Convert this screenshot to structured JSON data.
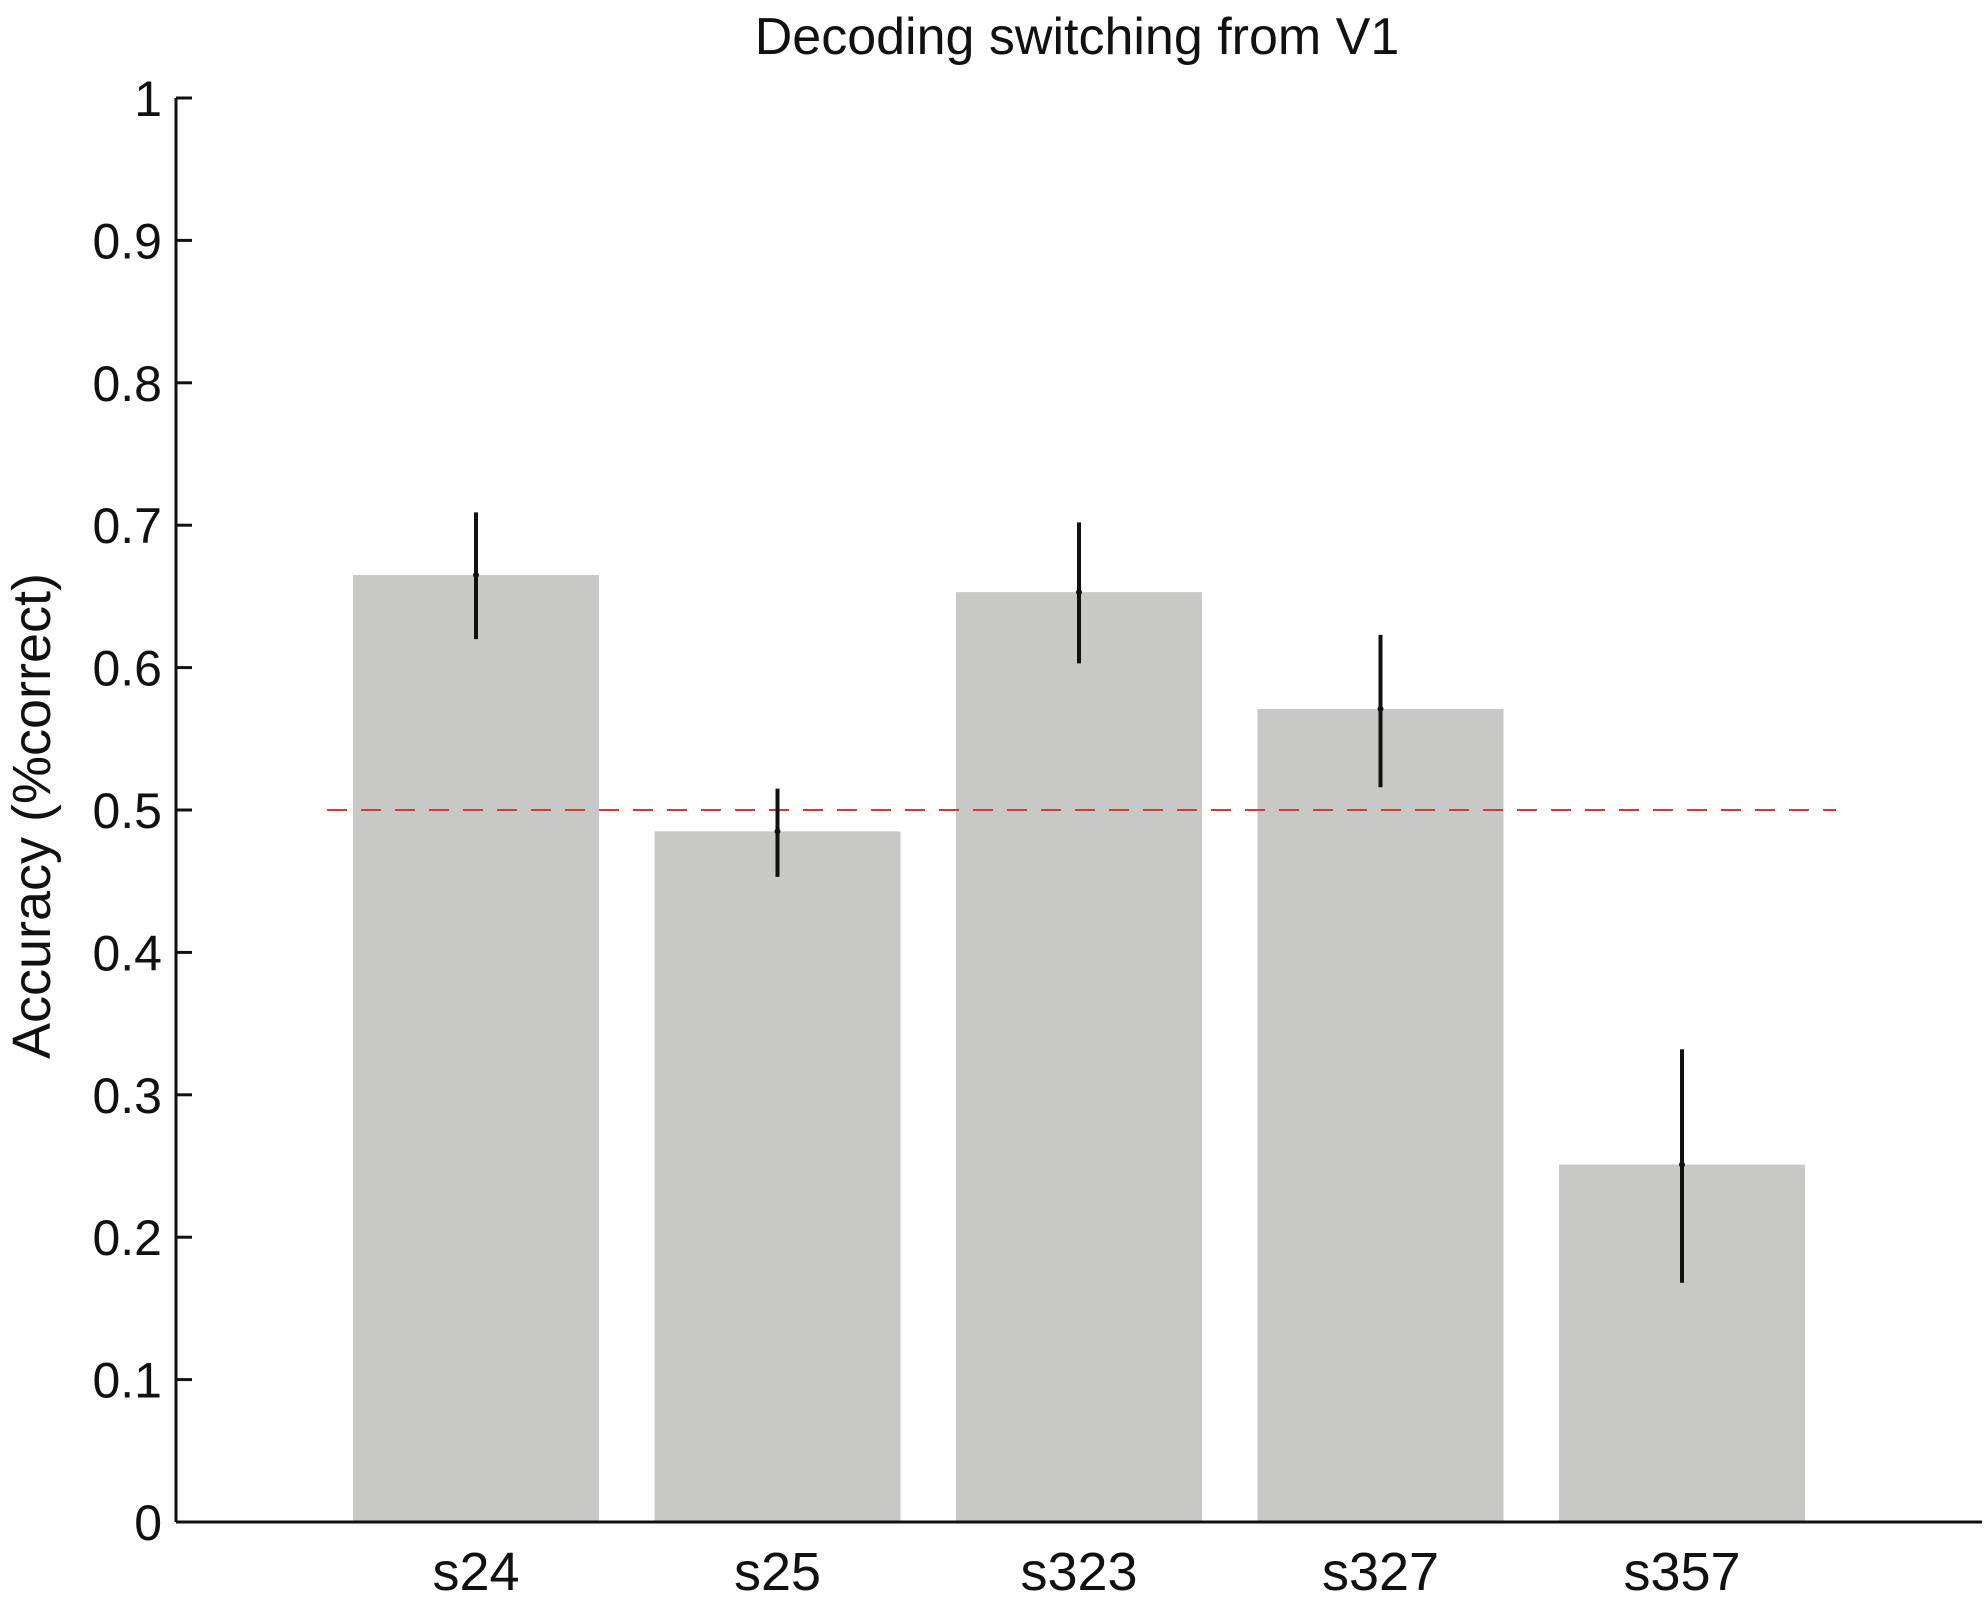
{
  "chart_data": {
    "type": "bar",
    "title": "Decoding switching from V1",
    "xlabel": "",
    "ylabel": "Accuracy (%correct)",
    "categories": [
      "s24",
      "s25",
      "s323",
      "s327",
      "s357"
    ],
    "values": [
      0.665,
      0.485,
      0.653,
      0.571,
      0.251
    ],
    "error_low": [
      0.62,
      0.453,
      0.603,
      0.516,
      0.168
    ],
    "error_high": [
      0.709,
      0.515,
      0.702,
      0.623,
      0.332
    ],
    "ylim": [
      0,
      1
    ],
    "yticks": [
      0,
      0.1,
      0.2,
      0.3,
      0.4,
      0.5,
      0.6,
      0.7,
      0.8,
      0.9,
      1
    ],
    "ytick_labels": [
      "0",
      "0.1",
      "0.2",
      "0.3",
      "0.4",
      "0.5",
      "0.6",
      "0.7",
      "0.8",
      "0.9",
      "1"
    ],
    "reference_line": {
      "y": 0.5,
      "style": "dashed",
      "color": "#d23a3a"
    },
    "bar_color": "#c8c8c6",
    "error_color": "#111111",
    "grid": false,
    "legend": "none"
  }
}
